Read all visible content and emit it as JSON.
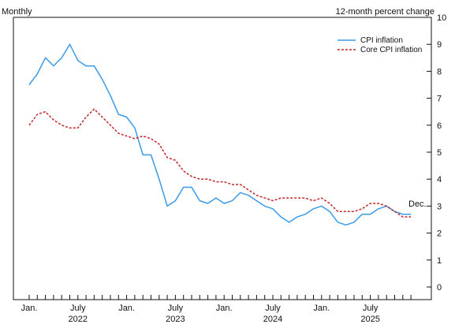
{
  "chart_data": {
    "type": "line",
    "frequency_label": "Monthly",
    "ylabel": "12-month percent change",
    "ylim": [
      0,
      10
    ],
    "y_ticks": [
      0,
      1,
      2,
      3,
      4,
      5,
      6,
      7,
      8,
      9,
      10
    ],
    "x_start": "2021-12",
    "x_end": "2025-12",
    "x_month_labels": [
      {
        "month": "2022-01",
        "label": "Jan."
      },
      {
        "month": "2022-07",
        "label": "July"
      },
      {
        "month": "2023-01",
        "label": "Jan."
      },
      {
        "month": "2023-07",
        "label": "July"
      },
      {
        "month": "2024-01",
        "label": "Jan."
      },
      {
        "month": "2024-07",
        "label": "July"
      },
      {
        "month": "2025-01",
        "label": "Jan."
      },
      {
        "month": "2025-07",
        "label": "July"
      }
    ],
    "x_year_labels": [
      {
        "month": "2022-07",
        "label": "2022"
      },
      {
        "month": "2023-07",
        "label": "2023"
      },
      {
        "month": "2024-07",
        "label": "2024"
      },
      {
        "month": "2025-07",
        "label": "2025"
      }
    ],
    "end_annotation": "Dec.",
    "legend_position": "top-right",
    "series": [
      {
        "name": "CPI inflation",
        "color": "#3a9ae6",
        "style": "solid",
        "start_month": "2022-01",
        "values": [
          7.5,
          7.9,
          8.5,
          8.2,
          8.5,
          9.0,
          8.4,
          8.2,
          8.2,
          7.7,
          7.1,
          6.4,
          6.3,
          5.9,
          4.9,
          4.9,
          4.0,
          3.0,
          3.2,
          3.7,
          3.7,
          3.2,
          3.1,
          3.3,
          3.1,
          3.2,
          3.5,
          3.4,
          3.2,
          3.0,
          2.9,
          2.6,
          2.4,
          2.6,
          2.7,
          2.9,
          3.0,
          2.8,
          2.4,
          2.3,
          2.4,
          2.7,
          2.7,
          2.9,
          3.0,
          2.8,
          2.7,
          2.7
        ]
      },
      {
        "name": "Core CPI inflation",
        "color": "#c0282a",
        "style": "dashed",
        "start_month": "2022-01",
        "values": [
          6.0,
          6.4,
          6.5,
          6.2,
          6.0,
          5.9,
          5.9,
          6.3,
          6.6,
          6.3,
          6.0,
          5.7,
          5.6,
          5.5,
          5.6,
          5.5,
          5.3,
          4.8,
          4.7,
          4.3,
          4.1,
          4.0,
          4.0,
          3.9,
          3.9,
          3.8,
          3.8,
          3.6,
          3.4,
          3.3,
          3.2,
          3.3,
          3.3,
          3.3,
          3.3,
          3.2,
          3.3,
          3.1,
          2.8,
          2.8,
          2.8,
          2.9,
          3.1,
          3.1,
          3.0,
          2.8,
          2.6,
          2.6
        ]
      }
    ]
  }
}
